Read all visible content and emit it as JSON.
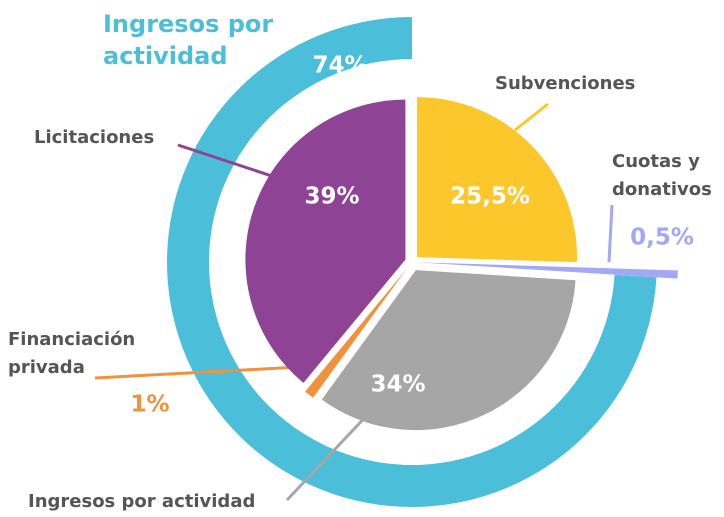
{
  "chart_data": {
    "type": "pie",
    "categories": [
      "Subvenciones",
      "Cuotas y donativos",
      "Ingresos por actividad",
      "Financiación privada",
      "Licitaciones"
    ],
    "values": [
      25.5,
      0.5,
      34,
      1,
      39
    ],
    "value_labels": [
      "25,5%",
      "0,5%",
      "34%",
      "1%",
      "39%"
    ],
    "colors": [
      "#fcc72a",
      "#a3a8f2",
      "#a6a6a6",
      "#f0913c",
      "#8f4394"
    ],
    "ring": {
      "name": "Ingresos por actividad",
      "value": 74,
      "value_label": "74%",
      "color": "#4bbfd9"
    }
  }
}
